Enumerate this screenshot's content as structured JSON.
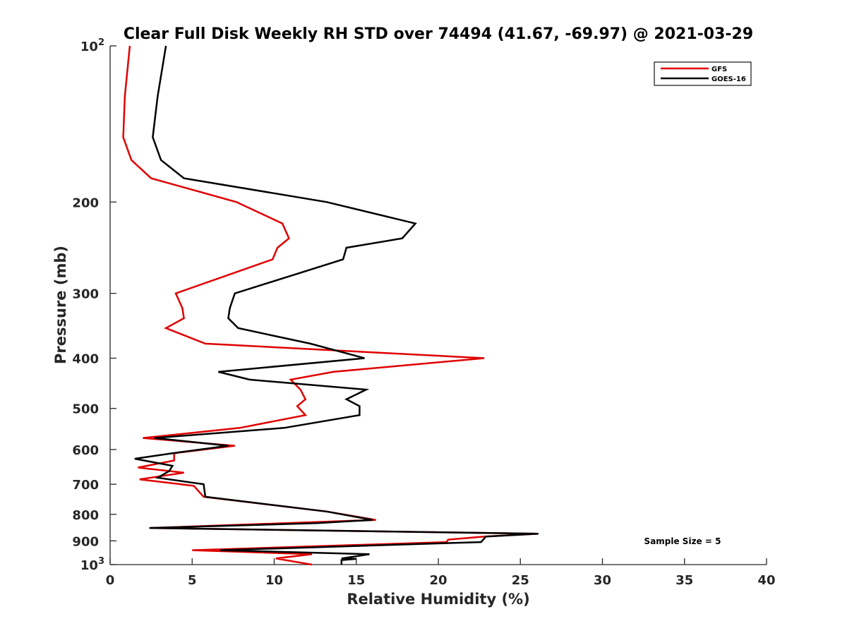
{
  "chart_data": {
    "type": "line",
    "title": "Clear Full Disk Weekly RH STD over 74494 (41.67, -69.97) @ 2021-03-29",
    "xlabel": "Relative Humidity (%)",
    "ylabel": "Pressure (mb)",
    "xlim": [
      0,
      40
    ],
    "ylim": [
      100,
      1000
    ],
    "yscale": "log",
    "yreversed": true,
    "grid": false,
    "x_ticks": [
      0,
      5,
      10,
      15,
      20,
      25,
      30,
      35,
      40
    ],
    "y_ticks": [
      {
        "value": 100,
        "base": "10",
        "exp": "2"
      },
      {
        "value": 200,
        "label": "200"
      },
      {
        "value": 300,
        "label": "300"
      },
      {
        "value": 400,
        "label": "400"
      },
      {
        "value": 500,
        "label": "500"
      },
      {
        "value": 600,
        "label": "600"
      },
      {
        "value": 700,
        "label": "700"
      },
      {
        "value": 800,
        "label": "800"
      },
      {
        "value": 900,
        "label": "900"
      },
      {
        "value": 1000,
        "base": "10",
        "exp": "3"
      }
    ],
    "legend_position": "top-right",
    "annotation": "Sample Size = 5",
    "series": [
      {
        "name": "GFS",
        "color": "#e00000",
        "points": [
          [
            1.2,
            100
          ],
          [
            0.9,
            125
          ],
          [
            0.8,
            150
          ],
          [
            1.3,
            166
          ],
          [
            2.5,
            180
          ],
          [
            7.7,
            200
          ],
          [
            10.5,
            220
          ],
          [
            10.9,
            235
          ],
          [
            10.2,
            245
          ],
          [
            9.9,
            258
          ],
          [
            4.0,
            300
          ],
          [
            4.4,
            320
          ],
          [
            4.5,
            335
          ],
          [
            3.4,
            350
          ],
          [
            5.8,
            375
          ],
          [
            22.8,
            400
          ],
          [
            13.6,
            425
          ],
          [
            11.0,
            440
          ],
          [
            11.6,
            460
          ],
          [
            11.9,
            480
          ],
          [
            11.4,
            495
          ],
          [
            11.9,
            515
          ],
          [
            7.9,
            545
          ],
          [
            2.0,
            570
          ],
          [
            7.6,
            590
          ],
          [
            3.9,
            610
          ],
          [
            3.9,
            630
          ],
          [
            1.7,
            650
          ],
          [
            4.5,
            665
          ],
          [
            1.8,
            685
          ],
          [
            5.1,
            705
          ],
          [
            5.7,
            740
          ],
          [
            13.2,
            790
          ],
          [
            16.2,
            820
          ],
          [
            2.4,
            850
          ],
          [
            26.1,
            872
          ],
          [
            22.8,
            883
          ],
          [
            20.6,
            895
          ],
          [
            20.5,
            905
          ],
          [
            5.0,
            938
          ],
          [
            12.3,
            955
          ],
          [
            10.1,
            973
          ],
          [
            12.3,
            1000
          ]
        ]
      },
      {
        "name": "GOES-16",
        "color": "#000000",
        "points": [
          [
            3.4,
            100
          ],
          [
            2.9,
            125
          ],
          [
            2.6,
            150
          ],
          [
            3.1,
            166
          ],
          [
            4.5,
            180
          ],
          [
            13.2,
            200
          ],
          [
            18.6,
            220
          ],
          [
            17.8,
            235
          ],
          [
            14.4,
            245
          ],
          [
            14.2,
            258
          ],
          [
            7.6,
            300
          ],
          [
            7.3,
            320
          ],
          [
            7.2,
            335
          ],
          [
            7.8,
            350
          ],
          [
            12.2,
            375
          ],
          [
            15.5,
            400
          ],
          [
            6.6,
            425
          ],
          [
            8.5,
            440
          ],
          [
            15.6,
            460
          ],
          [
            14.4,
            480
          ],
          [
            15.2,
            495
          ],
          [
            15.2,
            515
          ],
          [
            10.6,
            545
          ],
          [
            2.7,
            570
          ],
          [
            7.2,
            590
          ],
          [
            3.8,
            610
          ],
          [
            1.5,
            625
          ],
          [
            3.8,
            645
          ],
          [
            3.6,
            660
          ],
          [
            2.9,
            680
          ],
          [
            5.7,
            700
          ],
          [
            5.8,
            740
          ],
          [
            13.2,
            790
          ],
          [
            16.0,
            820
          ],
          [
            12.6,
            832
          ],
          [
            2.4,
            850
          ],
          [
            26.1,
            872
          ],
          [
            22.9,
            883
          ],
          [
            22.6,
            905
          ],
          [
            6.7,
            938
          ],
          [
            15.8,
            955
          ],
          [
            14.1,
            973
          ],
          [
            15.0,
            975
          ],
          [
            14.1,
            980
          ],
          [
            14.1,
            1000
          ]
        ]
      }
    ]
  }
}
